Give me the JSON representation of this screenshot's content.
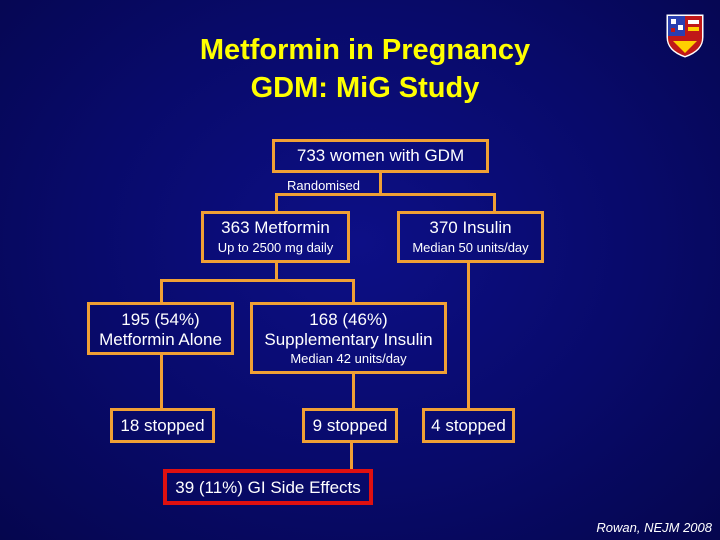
{
  "slide": {
    "title_line1": "Metformin in Pregnancy",
    "title_line2": "GDM: MiG Study",
    "citation": "Rowan, NEJM 2008"
  },
  "flowchart": {
    "top": {
      "label": "733 women with GDM",
      "sub": "Randomised"
    },
    "metformin_arm": {
      "label": "363 Metformin",
      "sub": "Up to 2500 mg daily"
    },
    "insulin_arm": {
      "label": "370 Insulin",
      "sub": "Median 50 units/day"
    },
    "metformin_alone": {
      "line1": "195 (54%)",
      "line2": "Metformin Alone"
    },
    "supplementary": {
      "line1": "168 (46%)",
      "line2": "Supplementary Insulin",
      "sub": "Median 42 units/day"
    },
    "stopped_a": "18 stopped",
    "stopped_b": "9 stopped",
    "stopped_c": "4 stopped",
    "side_effects": "39 (11%) GI Side Effects"
  },
  "colors": {
    "background": "#080a6a",
    "title": "#ffff00",
    "box_border": "#f0a035",
    "highlight_border": "#e01010",
    "text": "#ffffff"
  },
  "icons": {
    "logo": "heraldic-crest-icon"
  }
}
